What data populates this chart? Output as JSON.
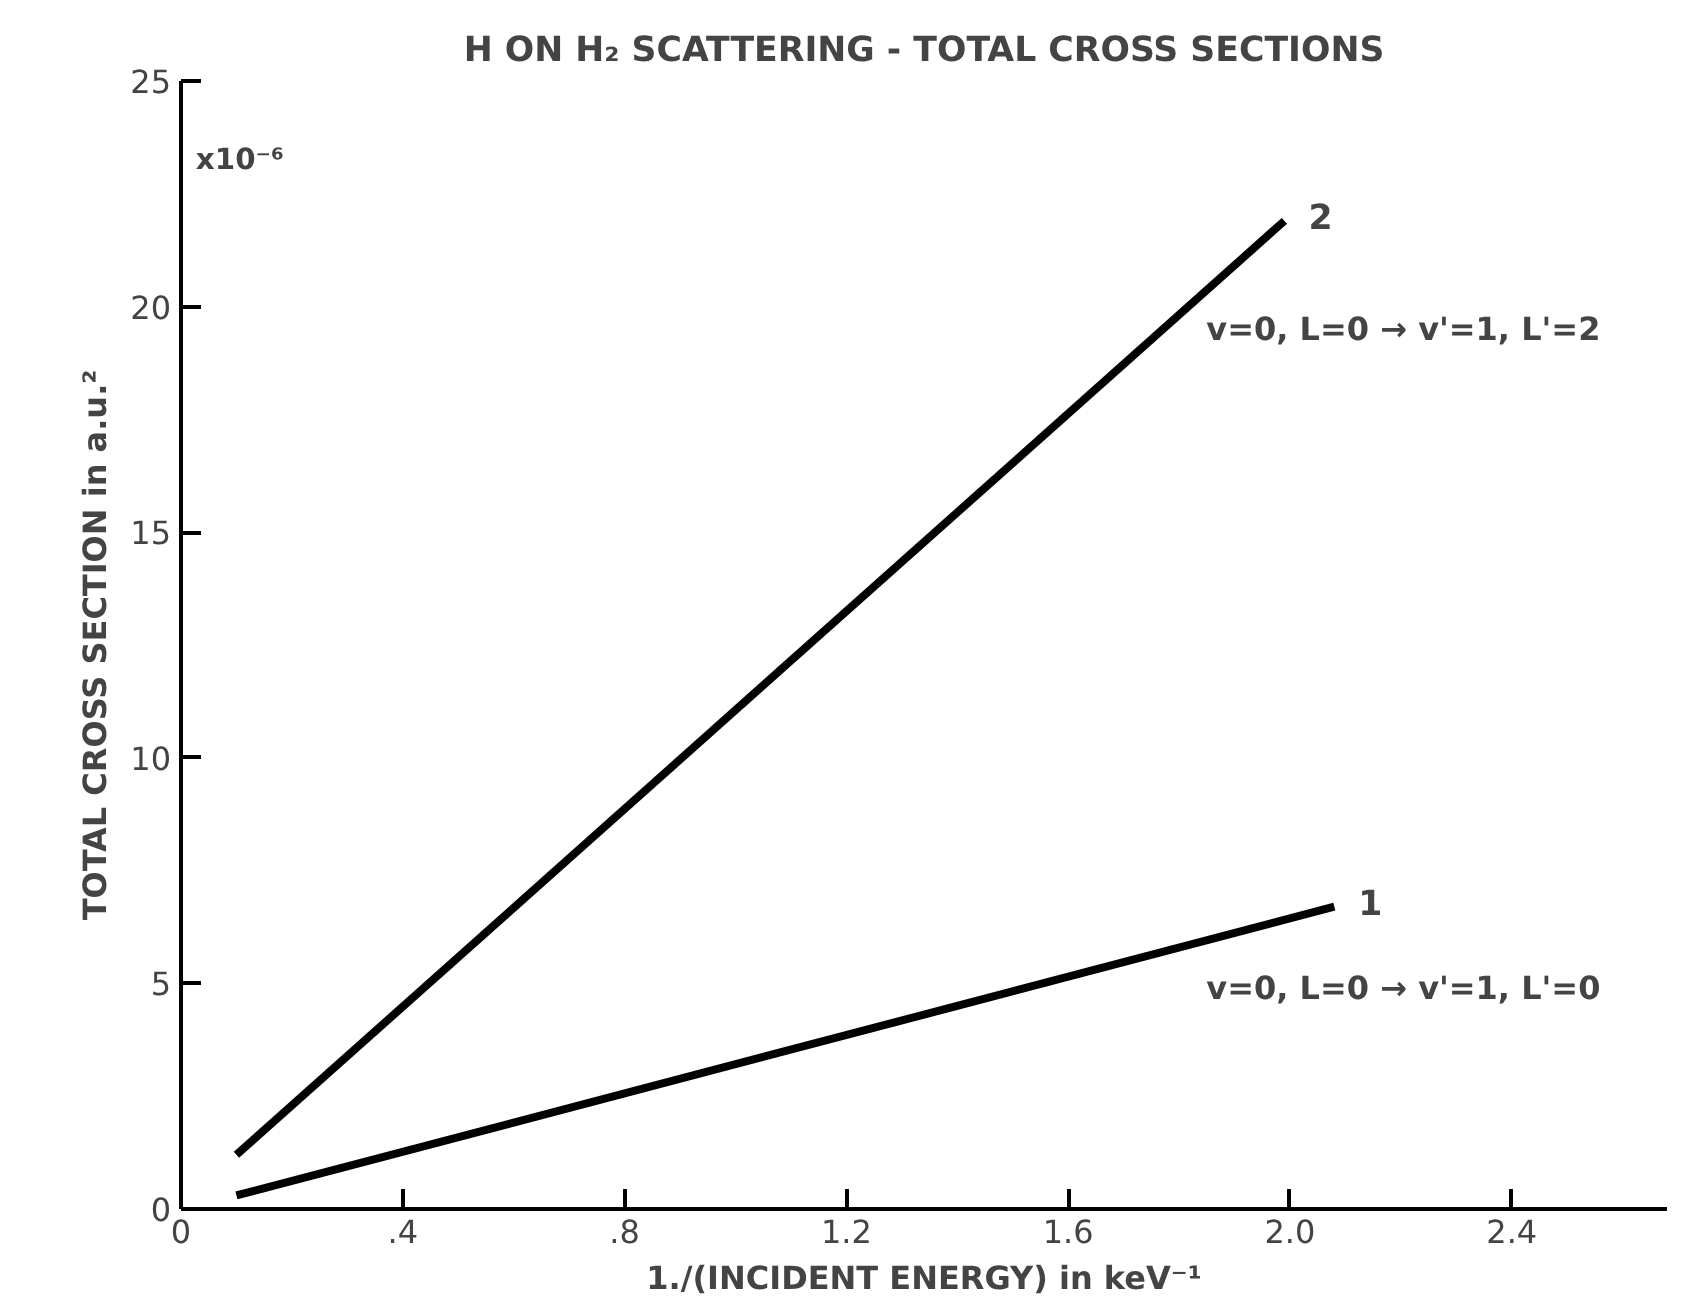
{
  "chart_data": {
    "type": "line",
    "title": "H ON H₂ SCATTERING - TOTAL CROSS SECTIONS",
    "xlabel": "1./(INCIDENT ENERGY) in keV⁻¹",
    "ylabel": "TOTAL CROSS SECTION in a.u.²",
    "series": [
      {
        "name": "2",
        "color": "#000000",
        "x": [
          0.1,
          1.99
        ],
        "values": [
          1.2,
          21.9
        ]
      },
      {
        "name": "1",
        "color": "#000000",
        "x": [
          0.1,
          2.08
        ],
        "values": [
          0.3,
          6.7
        ]
      }
    ],
    "annotations": [
      "x10⁻⁶",
      "v=0, L=0 → v'=1, L'=2",
      "v=0, L=0 → v'=1, L'=0"
    ],
    "xlim": [
      0,
      2.68
    ],
    "ylim": [
      0,
      25
    ],
    "xticks": [
      0,
      {
        "value": 0.4,
        "label": ".4"
      },
      {
        "value": 0.8,
        "label": ".8"
      },
      1.2,
      1.6,
      {
        "value": 2.0,
        "label": "2.0"
      },
      2.4
    ],
    "yticks": [
      0,
      5,
      10,
      15,
      20,
      25
    ],
    "grid": false,
    "marker": "none",
    "line_style": "solid"
  }
}
